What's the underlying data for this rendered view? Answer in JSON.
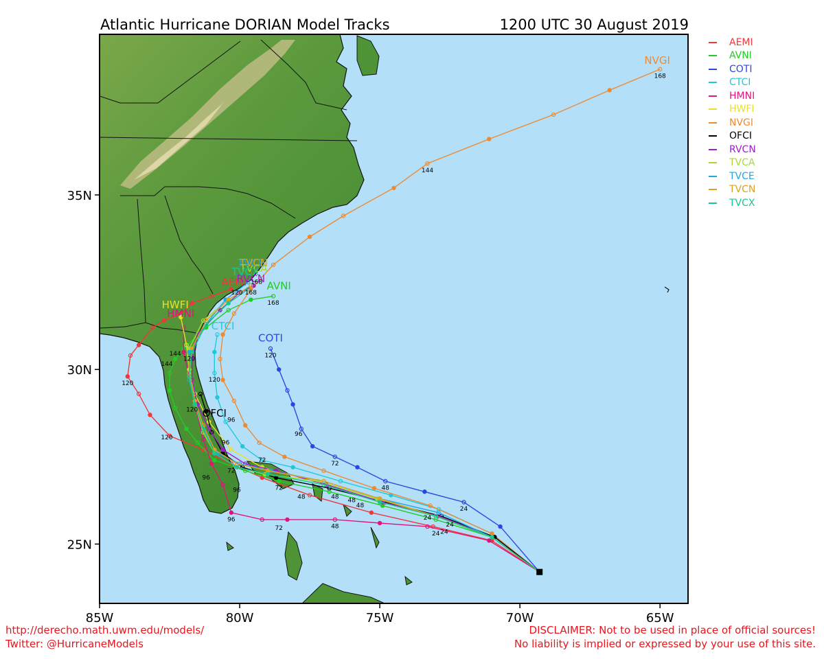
{
  "header": {
    "title": "Atlantic Hurricane DORIAN Model Tracks",
    "datetime": "1200 UTC 30 August 2019"
  },
  "map": {
    "lon_range": [
      -85,
      -64
    ],
    "lat_range": [
      23.3,
      39.6
    ],
    "x_ticks": [
      {
        "lon": -85,
        "label": "85W"
      },
      {
        "lon": -80,
        "label": "80W"
      },
      {
        "lon": -75,
        "label": "75W"
      },
      {
        "lon": -70,
        "label": "70W"
      },
      {
        "lon": -65,
        "label": "65W"
      }
    ],
    "y_ticks": [
      {
        "lat": 25,
        "label": "25N"
      },
      {
        "lat": 30,
        "label": "30N"
      },
      {
        "lat": 35,
        "label": "35N"
      }
    ],
    "colors": {
      "ocean": "#b3e0f8",
      "land": "#4e9437",
      "land_high": "#d9d0a0",
      "border": "#111111"
    }
  },
  "storm_start": {
    "lon": -69.3,
    "lat": 24.2
  },
  "models": [
    {
      "name": "AEMI",
      "color": "#f0373a",
      "end_label": {
        "lon": -80.2,
        "lat": 32.4
      },
      "track": [
        [
          -69.3,
          24.2
        ],
        [
          -71,
          25.1
        ],
        [
          -73.1,
          25.5
        ],
        [
          -75.3,
          25.9
        ],
        [
          -77.5,
          26.4
        ],
        [
          -79.2,
          26.9
        ],
        [
          -80.3,
          27.3
        ],
        [
          -81.3,
          27.7
        ],
        [
          -82.5,
          28.1
        ],
        [
          -83.2,
          28.7
        ],
        [
          -83.6,
          29.3
        ],
        [
          -84,
          29.8
        ],
        [
          -83.9,
          30.4
        ],
        [
          -83.6,
          30.7
        ],
        [
          -83.1,
          31.2
        ],
        [
          -82.7,
          31.4
        ],
        [
          -82.1,
          31.6
        ],
        [
          -81.7,
          31.9
        ],
        [
          -81,
          32.1
        ],
        [
          -80.3,
          32.3
        ]
      ],
      "hour_labels": [
        {
          "hr": "120",
          "lon": -84,
          "lat": 29.55
        }
      ]
    },
    {
      "name": "AVNI",
      "color": "#22cc22",
      "end_label": {
        "lon": -78.6,
        "lat": 32.3
      },
      "track": [
        [
          -69.3,
          24.2
        ],
        [
          -71,
          25.2
        ],
        [
          -73,
          25.7
        ],
        [
          -74.9,
          26.1
        ],
        [
          -76.8,
          26.5
        ],
        [
          -78.6,
          26.8
        ],
        [
          -79.8,
          27.1
        ],
        [
          -80.9,
          27.4
        ],
        [
          -81.5,
          27.9
        ],
        [
          -81.9,
          28.3
        ],
        [
          -82.3,
          28.9
        ],
        [
          -82.5,
          29.4
        ],
        [
          -82.5,
          29.9
        ],
        [
          -82.3,
          30.3
        ],
        [
          -82,
          30.6
        ],
        [
          -81.2,
          31.2
        ],
        [
          -80.4,
          31.7
        ],
        [
          -79.6,
          32
        ],
        [
          -78.8,
          32.1
        ]
      ],
      "hour_labels": [
        {
          "hr": "168",
          "lon": -78.8,
          "lat": 31.85
        },
        {
          "hr": "120",
          "lon": -82.6,
          "lat": 28.0
        },
        {
          "hr": "48",
          "lon": -76.6,
          "lat": 26.3
        }
      ]
    },
    {
      "name": "COTI",
      "color": "#2848e0",
      "end_label": {
        "lon": -78.9,
        "lat": 30.8
      },
      "track": [
        [
          -69.3,
          24.2
        ],
        [
          -70.7,
          25.5
        ],
        [
          -72,
          26.2
        ],
        [
          -73.4,
          26.5
        ],
        [
          -74.8,
          26.8
        ],
        [
          -75.8,
          27.2
        ],
        [
          -76.6,
          27.5
        ],
        [
          -77.4,
          27.8
        ],
        [
          -77.8,
          28.3
        ],
        [
          -78.1,
          29
        ],
        [
          -78.3,
          29.4
        ],
        [
          -78.6,
          30
        ],
        [
          -78.9,
          30.6
        ]
      ],
      "hour_labels": [
        {
          "hr": "120",
          "lon": -78.9,
          "lat": 30.35
        },
        {
          "hr": "96",
          "lon": -77.9,
          "lat": 28.1
        },
        {
          "hr": "72",
          "lon": -76.6,
          "lat": 27.25
        },
        {
          "hr": "48",
          "lon": -74.8,
          "lat": 26.55
        },
        {
          "hr": "24",
          "lon": -72,
          "lat": 25.95
        }
      ]
    },
    {
      "name": "CTCI",
      "color": "#22c8d8",
      "end_label": {
        "lon": -80.6,
        "lat": 31.15
      },
      "track": [
        [
          -69.3,
          24.2
        ],
        [
          -71,
          25.3
        ],
        [
          -72.9,
          26
        ],
        [
          -74.6,
          26.4
        ],
        [
          -76.4,
          26.8
        ],
        [
          -78.1,
          27.2
        ],
        [
          -79.2,
          27.4
        ],
        [
          -79.9,
          27.8
        ],
        [
          -80.5,
          28.5
        ],
        [
          -80.8,
          29.2
        ],
        [
          -80.9,
          29.9
        ],
        [
          -80.9,
          30.5
        ],
        [
          -80.8,
          31
        ]
      ],
      "hour_labels": [
        {
          "hr": "120",
          "lon": -80.9,
          "lat": 29.65
        }
      ]
    },
    {
      "name": "HMNI",
      "color": "#e0147c",
      "end_label": {
        "lon": -82.1,
        "lat": 31.5
      },
      "track": [
        [
          -69.3,
          24.2
        ],
        [
          -71.1,
          25.1
        ],
        [
          -73.3,
          25.5
        ],
        [
          -75,
          25.6
        ],
        [
          -76.6,
          25.7
        ],
        [
          -78.3,
          25.7
        ],
        [
          -79.2,
          25.7
        ],
        [
          -80.3,
          25.9
        ],
        [
          -80.6,
          26.7
        ],
        [
          -81,
          27.3
        ],
        [
          -81.3,
          28
        ],
        [
          -81.6,
          29
        ],
        [
          -81.8,
          29.8
        ],
        [
          -82,
          30.5
        ],
        [
          -82,
          31.2
        ]
      ],
      "hour_labels": [
        {
          "hr": "24",
          "lon": -73,
          "lat": 25.25
        },
        {
          "hr": "48",
          "lon": -76.6,
          "lat": 25.45
        },
        {
          "hr": "72",
          "lon": -78.6,
          "lat": 25.4
        },
        {
          "hr": "96",
          "lon": -80.3,
          "lat": 25.65
        }
      ]
    },
    {
      "name": "HWFI",
      "color": "#e8e030",
      "end_label": {
        "lon": -82.3,
        "lat": 31.75
      },
      "track": [
        [
          -69.3,
          24.2
        ],
        [
          -71,
          25.2
        ],
        [
          -73,
          25.8
        ],
        [
          -75.1,
          26.3
        ],
        [
          -77.2,
          26.8
        ],
        [
          -79.2,
          27.2
        ],
        [
          -80.3,
          27.7
        ],
        [
          -81.1,
          28.5
        ],
        [
          -81.6,
          29.3
        ],
        [
          -81.8,
          30
        ],
        [
          -81.9,
          30.7
        ],
        [
          -82.1,
          31.5
        ]
      ],
      "hour_labels": [
        {
          "hr": "144",
          "lon": -82.3,
          "lat": 30.4
        }
      ]
    },
    {
      "name": "NVGI",
      "color": "#ee8a32",
      "end_label": {
        "lon": -65.1,
        "lat": 38.75
      },
      "track": [
        [
          -69.3,
          24.2
        ],
        [
          -71,
          25.3
        ],
        [
          -73.2,
          26.1
        ],
        [
          -75.2,
          26.6
        ],
        [
          -77,
          27.1
        ],
        [
          -78.4,
          27.5
        ],
        [
          -79.3,
          27.9
        ],
        [
          -79.8,
          28.4
        ],
        [
          -80.2,
          29.1
        ],
        [
          -80.6,
          29.7
        ],
        [
          -80.7,
          30.3
        ],
        [
          -80.6,
          31
        ],
        [
          -80.2,
          31.6
        ],
        [
          -79.6,
          32.3
        ],
        [
          -78.8,
          33
        ],
        [
          -77.5,
          33.8
        ],
        [
          -76.3,
          34.4
        ],
        [
          -74.5,
          35.2
        ],
        [
          -73.3,
          35.9
        ],
        [
          -71.1,
          36.6
        ],
        [
          -68.8,
          37.3
        ],
        [
          -66.8,
          38
        ],
        [
          -65,
          38.6
        ]
      ],
      "hour_labels": [
        {
          "hr": "168",
          "lon": -65,
          "lat": 38.35
        },
        {
          "hr": "144",
          "lon": -73.3,
          "lat": 35.65
        },
        {
          "hr": "96",
          "lon": -80.3,
          "lat": 28.5
        },
        {
          "hr": "72",
          "lon": -79.2,
          "lat": 27.35
        }
      ]
    },
    {
      "name": "OFCI",
      "color": "#000000",
      "end_label": {
        "lon": -80.9,
        "lat": 28.65
      },
      "track": [
        [
          -69.3,
          24.2
        ],
        [
          -70.9,
          25.2
        ],
        [
          -72.8,
          25.8
        ],
        [
          -74.8,
          26.2
        ],
        [
          -76.8,
          26.6
        ],
        [
          -78.7,
          26.9
        ],
        [
          -79.9,
          27.2
        ],
        [
          -80.6,
          27.6
        ],
        [
          -81,
          28.2
        ],
        [
          -81.2,
          28.8
        ],
        [
          -81.4,
          29.3
        ]
      ],
      "hour_labels": [
        {
          "hr": "120",
          "lon": -81.7,
          "lat": 28.8
        },
        {
          "hr": "72",
          "lon": -78.6,
          "lat": 26.55
        }
      ]
    },
    {
      "name": "RVCN",
      "color": "#a01ec8",
      "end_label": {
        "lon": -79.6,
        "lat": 32.5
      },
      "track": [
        [
          -69.3,
          24.2
        ],
        [
          -71,
          25.2
        ],
        [
          -72.9,
          25.8
        ],
        [
          -74.9,
          26.2
        ],
        [
          -76.9,
          26.7
        ],
        [
          -78.7,
          27.1
        ],
        [
          -79.8,
          27.3
        ],
        [
          -80.6,
          27.7
        ],
        [
          -81.1,
          28.3
        ],
        [
          -81.5,
          29
        ],
        [
          -81.7,
          29.7
        ],
        [
          -81.7,
          30.3
        ],
        [
          -81.5,
          31
        ],
        [
          -80.7,
          31.7
        ],
        [
          -80,
          32.2
        ],
        [
          -79.5,
          32.4
        ]
      ],
      "hour_labels": []
    },
    {
      "name": "TVCA",
      "color": "#a8d838",
      "end_label": {
        "lon": -79.5,
        "lat": 32.8
      },
      "track": [
        [
          -69.3,
          24.2
        ],
        [
          -71,
          25.2
        ],
        [
          -73,
          25.8
        ],
        [
          -75.1,
          26.3
        ],
        [
          -77.2,
          26.8
        ],
        [
          -79.1,
          27
        ],
        [
          -80.1,
          27.2
        ],
        [
          -80.9,
          27.6
        ],
        [
          -81.3,
          28.2
        ],
        [
          -81.6,
          29
        ],
        [
          -81.8,
          29.8
        ],
        [
          -81.8,
          30.6
        ],
        [
          -81.3,
          31.4
        ],
        [
          -80.4,
          32
        ],
        [
          -79.6,
          32.4
        ]
      ],
      "hour_labels": []
    },
    {
      "name": "TVCE",
      "color": "#1ea8e8",
      "end_label": {
        "lon": -79.6,
        "lat": 32.95
      },
      "track": [
        [
          -69.3,
          24.2
        ],
        [
          -71,
          25.2
        ],
        [
          -72.9,
          25.9
        ],
        [
          -75,
          26.3
        ],
        [
          -77,
          26.8
        ],
        [
          -78.9,
          27.1
        ],
        [
          -80,
          27.3
        ],
        [
          -80.8,
          27.6
        ],
        [
          -81.3,
          28.3
        ],
        [
          -81.6,
          29
        ],
        [
          -81.8,
          29.7
        ],
        [
          -81.8,
          30.5
        ],
        [
          -81.2,
          31.3
        ],
        [
          -80.5,
          32
        ],
        [
          -79.7,
          32.5
        ]
      ],
      "hour_labels": []
    },
    {
      "name": "TVCN",
      "color": "#e0a020",
      "end_label": {
        "lon": -79.5,
        "lat": 32.95
      },
      "track": [
        [
          -69.3,
          24.2
        ],
        [
          -71,
          25.2
        ],
        [
          -73,
          25.8
        ],
        [
          -75,
          26.3
        ],
        [
          -77,
          26.8
        ],
        [
          -79,
          27.1
        ],
        [
          -80.1,
          27.3
        ],
        [
          -80.9,
          27.7
        ],
        [
          -81.3,
          28.4
        ],
        [
          -81.6,
          29.1
        ],
        [
          -81.8,
          29.9
        ],
        [
          -81.7,
          30.6
        ],
        [
          -81.2,
          31.4
        ],
        [
          -80.4,
          32
        ],
        [
          -79.6,
          32.4
        ]
      ],
      "hour_labels": []
    },
    {
      "name": "TVCX",
      "color": "#18c890",
      "end_label": {
        "lon": -79.8,
        "lat": 32.7
      },
      "track": [
        [
          -69.3,
          24.2
        ],
        [
          -71,
          25.2
        ],
        [
          -73,
          25.8
        ],
        [
          -75,
          26.2
        ],
        [
          -77,
          26.7
        ],
        [
          -79,
          27
        ],
        [
          -80.1,
          27.2
        ],
        [
          -80.9,
          27.6
        ],
        [
          -81.3,
          28.3
        ],
        [
          -81.6,
          29
        ],
        [
          -81.8,
          29.8
        ],
        [
          -81.7,
          30.5
        ],
        [
          -81.2,
          31.3
        ],
        [
          -80.4,
          31.9
        ],
        [
          -79.7,
          32.3
        ]
      ],
      "hour_labels": []
    }
  ],
  "extra_hour_labels": [
    {
      "hr": "96",
      "lon": -80.1,
      "lat": 26.5,
      "color": "#000"
    },
    {
      "hr": "96",
      "lon": -81.2,
      "lat": 26.85,
      "color": "#000"
    },
    {
      "hr": "96",
      "lon": -80.5,
      "lat": 27.85,
      "color": "#000"
    },
    {
      "hr": "72",
      "lon": -80.3,
      "lat": 27.05,
      "color": "#000"
    },
    {
      "hr": "48",
      "lon": -77.8,
      "lat": 26.3,
      "color": "#000"
    },
    {
      "hr": "48",
      "lon": -76,
      "lat": 26.2,
      "color": "#000"
    },
    {
      "hr": "48",
      "lon": -75.7,
      "lat": 26.05,
      "color": "#000"
    },
    {
      "hr": "24",
      "lon": -73.3,
      "lat": 25.7,
      "color": "#000"
    },
    {
      "hr": "24",
      "lon": -72.5,
      "lat": 25.5,
      "color": "#000"
    },
    {
      "hr": "24",
      "lon": -72.7,
      "lat": 25.3,
      "color": "#000"
    },
    {
      "hr": "144",
      "lon": -82.6,
      "lat": 30.1,
      "color": "#000"
    },
    {
      "hr": "120",
      "lon": -81.8,
      "lat": 30.25,
      "color": "#000"
    },
    {
      "hr": "168",
      "lon": -79.4,
      "lat": 32.45,
      "color": "#000"
    },
    {
      "hr": "168",
      "lon": -79.6,
      "lat": 32.15,
      "color": "#000"
    },
    {
      "hr": "120",
      "lon": -80.1,
      "lat": 32.15,
      "color": "#000"
    }
  ],
  "legend": [
    {
      "name": "AEMI",
      "color": "#f0373a"
    },
    {
      "name": "AVNI",
      "color": "#22cc22"
    },
    {
      "name": "COTI",
      "color": "#2848e0"
    },
    {
      "name": "CTCI",
      "color": "#22c8d8"
    },
    {
      "name": "HMNI",
      "color": "#e0147c"
    },
    {
      "name": "HWFI",
      "color": "#e8e030"
    },
    {
      "name": "NVGI",
      "color": "#ee8a32"
    },
    {
      "name": "OFCI",
      "color": "#000000"
    },
    {
      "name": "RVCN",
      "color": "#a01ec8"
    },
    {
      "name": "TVCA",
      "color": "#a8d838"
    },
    {
      "name": "TVCE",
      "color": "#1ea8e8"
    },
    {
      "name": "TVCN",
      "color": "#e0a020"
    },
    {
      "name": "TVCX",
      "color": "#18c890"
    }
  ],
  "footer": {
    "url": "http://derecho.math.uwm.edu/models/",
    "twitter": "Twitter: @HurricaneModels",
    "disclaimer_1": "DISCLAIMER: Not to be used in place of official sources!",
    "disclaimer_2": "No liability is implied or expressed by your use of this site."
  }
}
